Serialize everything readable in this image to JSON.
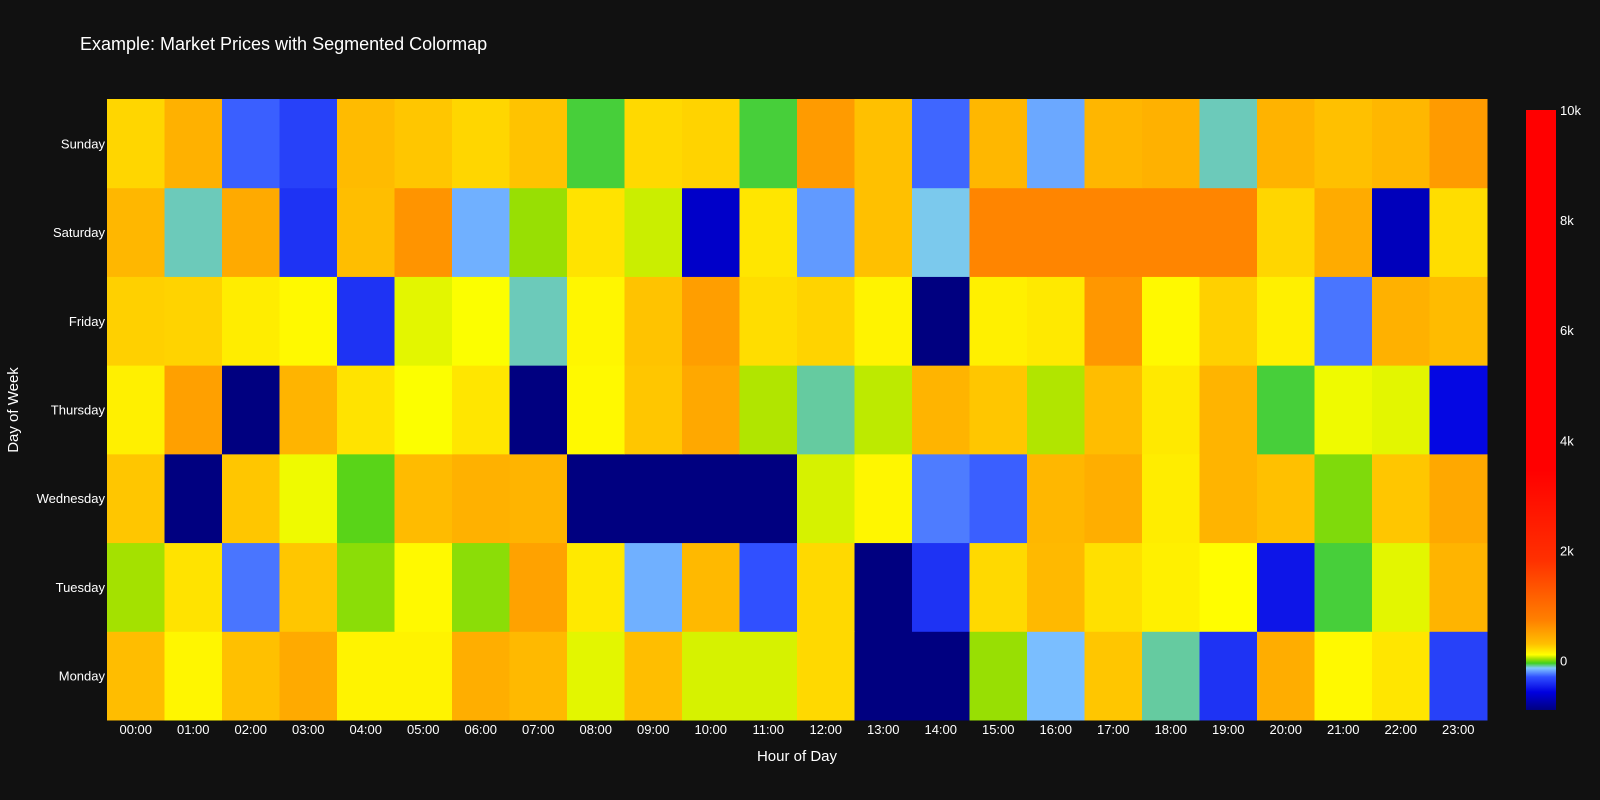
{
  "chart_data": {
    "type": "heatmap",
    "title": "Example: Market Prices with Segmented Colormap",
    "xlabel": "Hour of Day",
    "ylabel": "Day of Week",
    "x": [
      "00:00",
      "01:00",
      "02:00",
      "03:00",
      "04:00",
      "05:00",
      "06:00",
      "07:00",
      "08:00",
      "09:00",
      "10:00",
      "11:00",
      "12:00",
      "13:00",
      "14:00",
      "15:00",
      "16:00",
      "17:00",
      "18:00",
      "19:00",
      "20:00",
      "21:00",
      "22:00",
      "23:00"
    ],
    "y": [
      "Monday",
      "Tuesday",
      "Wednesday",
      "Thursday",
      "Friday",
      "Saturday",
      "Sunday"
    ],
    "z": [
      [
        320,
        130,
        300,
        450,
        140,
        140,
        420,
        350,
        80,
        310,
        70,
        70,
        220,
        -900,
        -900,
        20,
        -150,
        280,
        -100,
        -400,
        430,
        120,
        180,
        -350
      ],
      [
        30,
        190,
        -250,
        280,
        10,
        120,
        10,
        500,
        170,
        -170,
        350,
        -300,
        220,
        -900,
        -400,
        220,
        350,
        200,
        150,
        110,
        -500,
        -60,
        80,
        380
      ],
      [
        280,
        -900,
        280,
        90,
        -30,
        330,
        400,
        380,
        -900,
        -900,
        -900,
        -900,
        70,
        130,
        -240,
        -280,
        360,
        420,
        160,
        380,
        300,
        0,
        280,
        460
      ],
      [
        150,
        520,
        -900,
        380,
        190,
        100,
        180,
        -900,
        120,
        280,
        460,
        40,
        -100,
        50,
        380,
        280,
        40,
        320,
        170,
        380,
        -60,
        90,
        80,
        -550
      ],
      [
        250,
        240,
        160,
        120,
        -400,
        80,
        100,
        -110,
        130,
        290,
        530,
        210,
        240,
        140,
        -900,
        150,
        170,
        580,
        120,
        250,
        150,
        -250,
        400,
        330
      ],
      [
        360,
        -110,
        450,
        -400,
        310,
        600,
        -170,
        20,
        190,
        60,
        -650,
        180,
        -200,
        300,
        -130,
        700,
        700,
        700,
        700,
        700,
        230,
        440,
        -700,
        210
      ],
      [
        230,
        400,
        -280,
        -350,
        330,
        280,
        230,
        290,
        -60,
        220,
        240,
        -60,
        550,
        300,
        -270,
        360,
        -180,
        370,
        400,
        -110,
        390,
        300,
        360,
        550
      ]
    ],
    "colorscale_range": [
      -900,
      10000
    ],
    "colorbar_ticks": [
      0,
      2000,
      4000,
      6000,
      8000,
      10000
    ],
    "colorbar_tick_labels": [
      "0",
      "2k",
      "4k",
      "6k",
      "8k",
      "10k"
    ],
    "colors": {
      "background": "#111111",
      "low": "#000080",
      "high": "#ff0000"
    },
    "grid": false,
    "legend": "colorbar-right"
  }
}
